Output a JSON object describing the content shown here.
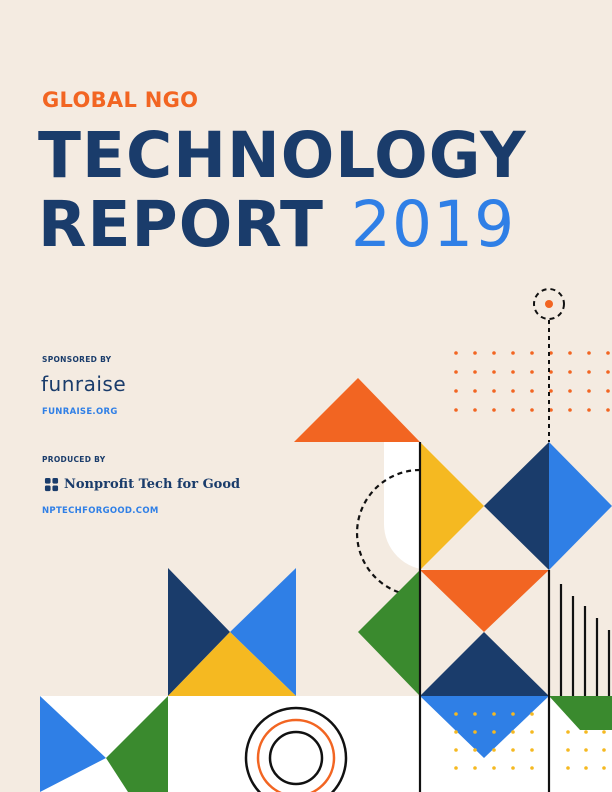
{
  "cover": {
    "kicker": "GLOBAL NGO",
    "title_line1": "TECHNOLOGY",
    "title_line2": "REPORT",
    "year": "2019"
  },
  "sponsor": {
    "label": "SPONSORED BY",
    "name": "funraise",
    "url": "FUNRAISE.ORG"
  },
  "producer": {
    "label": "PRODUCED BY",
    "name": "Nonprofit Tech for Good",
    "url": "NPTECHFORGOOD.COM"
  },
  "colors": {
    "background": "#f4ebe1",
    "navy": "#1a3c6b",
    "orange": "#f26522",
    "blue": "#2f7fe6",
    "yellow": "#f5b921",
    "green": "#3a8a2e"
  }
}
